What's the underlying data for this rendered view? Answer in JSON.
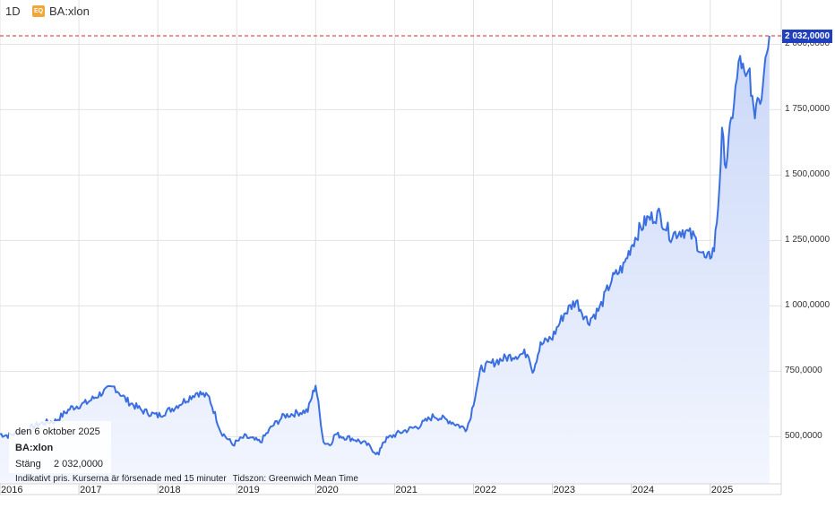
{
  "header": {
    "interval": "1D",
    "badge": "EQ",
    "symbol": "BA:xlon"
  },
  "last_price_label": "2 032,0000",
  "info": {
    "date": "den 6 oktober 2025",
    "symbol": "BA:xlon",
    "close_label": "Stäng",
    "close_value": "2 032,0000"
  },
  "footer": {
    "delay_text": "Indikativt pris. Kurserna är försenade med 15 minuter",
    "timezone_text": "Tidszon: Greenwich Mean Time"
  },
  "colors": {
    "line": "#3b6fe0",
    "area_top": "#c9d7f8",
    "area_bottom": "#f3f6fe",
    "last_price_dash": "#d9252a",
    "price_tag": "#1f3fbf",
    "grid": "#e3e3e3"
  },
  "chart_data": {
    "type": "area",
    "title": "",
    "xlabel": "",
    "ylabel": "",
    "ylim": [
      320,
      2080
    ],
    "xlim": [
      2016.0,
      2025.9
    ],
    "grid": true,
    "legend": "none",
    "y_ticks": [
      500,
      750,
      1000,
      1250,
      1500,
      1750,
      2000
    ],
    "y_tick_labels": [
      "500,0000",
      "750,0000",
      "1 000,0000",
      "1 250,0000",
      "1 500,0000",
      "1 750,0000",
      "2 000,0000"
    ],
    "x_ticks": [
      2016,
      2017,
      2018,
      2019,
      2020,
      2021,
      2022,
      2023,
      2024,
      2025
    ],
    "x_tick_labels": [
      "2016",
      "2017",
      "2018",
      "2019",
      "2020",
      "2021",
      "2022",
      "2023",
      "2024",
      "2025"
    ],
    "last_value": 2032,
    "series": [
      {
        "x": [
          2016.0,
          2016.1,
          2016.3,
          2016.5,
          2016.7,
          2016.9,
          2017.1,
          2017.3,
          2017.45,
          2017.6,
          2017.8,
          2018.0,
          2018.2,
          2018.35,
          2018.5,
          2018.65,
          2018.8,
          2018.95,
          2019.1,
          2019.3,
          2019.45,
          2019.6,
          2019.75,
          2019.9,
          2020.0,
          2020.1,
          2020.18,
          2020.25,
          2020.35,
          2020.5,
          2020.65,
          2020.8,
          2020.85,
          2020.95,
          2021.1,
          2021.3,
          2021.5,
          2021.7,
          2021.9,
          2021.95,
          2022.05,
          2022.1,
          2022.3,
          2022.5,
          2022.7,
          2022.75,
          2022.85,
          2023.0,
          2023.15,
          2023.3,
          2023.45,
          2023.6,
          2023.75,
          2023.9,
          2024.0,
          2024.1,
          2024.2,
          2024.35,
          2024.5,
          2024.65,
          2024.8,
          2024.95,
          2025.05,
          2025.1,
          2025.15,
          2025.2,
          2025.3,
          2025.38,
          2025.45,
          2025.5,
          2025.55,
          2025.6,
          2025.65,
          2025.7,
          2025.75
        ],
        "values": [
          510,
          505,
          520,
          550,
          560,
          610,
          630,
          670,
          690,
          640,
          600,
          580,
          610,
          640,
          670,
          650,
          520,
          470,
          500,
          480,
          540,
          580,
          590,
          600,
          700,
          480,
          470,
          510,
          500,
          490,
          470,
          430,
          480,
          500,
          520,
          540,
          580,
          560,
          530,
          560,
          700,
          760,
          790,
          810,
          820,
          750,
          850,
          880,
          970,
          1020,
          940,
          990,
          1100,
          1150,
          1230,
          1290,
          1330,
          1350,
          1270,
          1290,
          1260,
          1170,
          1220,
          1380,
          1650,
          1540,
          1780,
          1950,
          1850,
          1900,
          1720,
          1800,
          1800,
          1980,
          2032
        ]
      }
    ]
  }
}
